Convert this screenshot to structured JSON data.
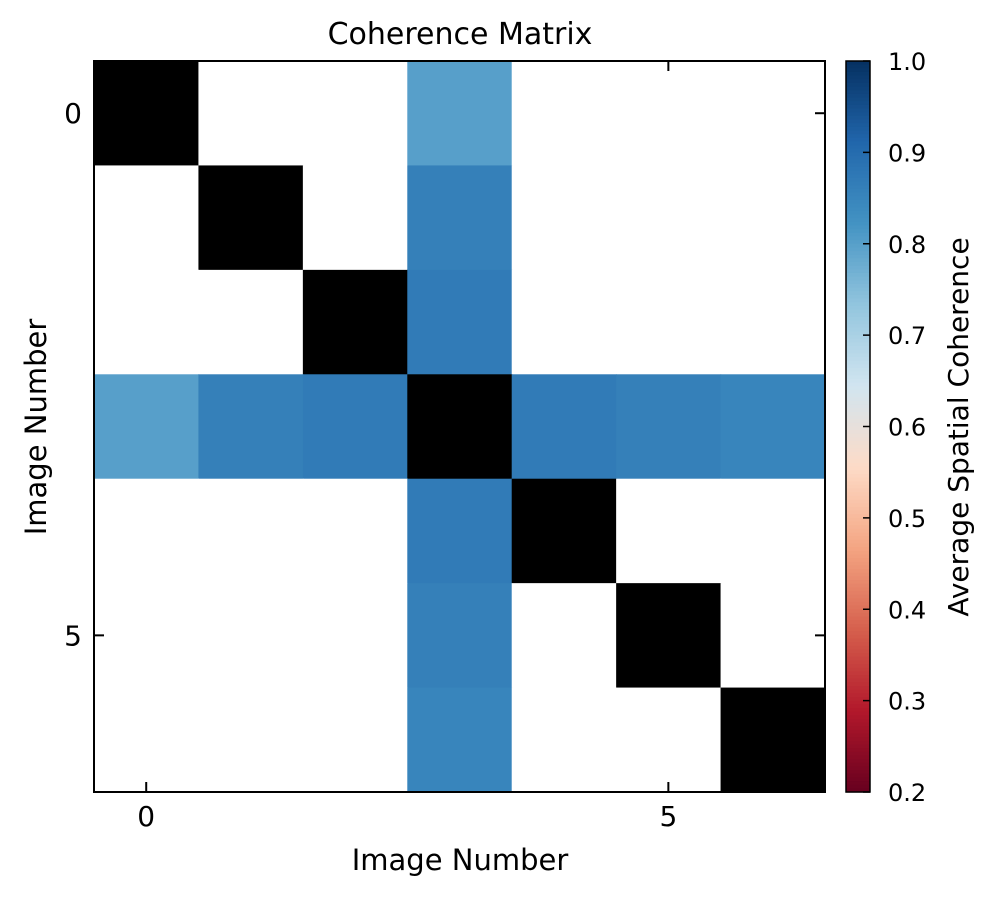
{
  "chart_data": {
    "type": "heatmap",
    "title": "Coherence Matrix",
    "xlabel": "Image Number",
    "ylabel": "Image Number",
    "x_ticks": [
      0,
      5
    ],
    "y_ticks": [
      0,
      5
    ],
    "x_tick_labels": [
      "0",
      "5"
    ],
    "y_tick_labels": [
      "0",
      "5"
    ],
    "size": 7,
    "matrix": [
      [
        null,
        null,
        null,
        0.8,
        null,
        null,
        null
      ],
      [
        null,
        null,
        null,
        0.86,
        null,
        null,
        null
      ],
      [
        null,
        null,
        null,
        0.87,
        null,
        null,
        null
      ],
      [
        0.8,
        0.86,
        0.87,
        null,
        0.87,
        0.86,
        0.85
      ],
      [
        null,
        null,
        null,
        0.87,
        null,
        null,
        null
      ],
      [
        null,
        null,
        null,
        0.86,
        null,
        null,
        null
      ],
      [
        null,
        null,
        null,
        0.85,
        null,
        null,
        null
      ]
    ],
    "diagonal_color": "#000000",
    "empty_color": "#ffffff",
    "colorbar": {
      "label": "Average Spatial Coherence",
      "vmin": 0.2,
      "vmax": 1.0,
      "ticks": [
        0.2,
        0.3,
        0.4,
        0.5,
        0.6,
        0.7,
        0.8,
        0.9,
        1.0
      ],
      "tick_labels": [
        "0.2",
        "0.3",
        "0.4",
        "0.5",
        "0.6",
        "0.7",
        "0.8",
        "0.9",
        "1.0"
      ],
      "colormap": "RdBu",
      "colormap_stops": [
        "#67001f",
        "#b2182b",
        "#d6604d",
        "#f4a582",
        "#fddbc7",
        "#d1e5f0",
        "#92c5de",
        "#4393c3",
        "#2166ac",
        "#053061"
      ]
    },
    "grid": false,
    "legend": "none"
  }
}
